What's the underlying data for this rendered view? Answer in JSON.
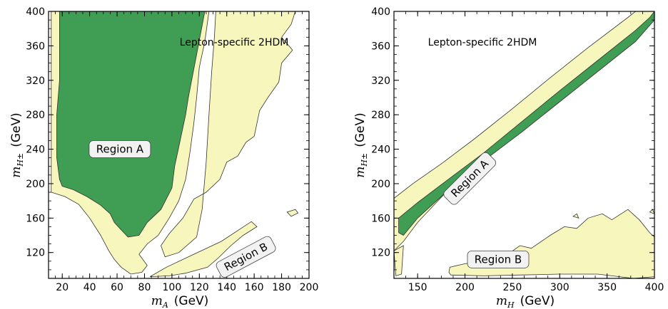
{
  "colors": {
    "light_region": "#f7f7bd",
    "dark_region": "#3f9e54",
    "contour_line": "#333333",
    "label_box": "#f2f2f2"
  },
  "chart_data": [
    {
      "type": "area",
      "annotation": "Lepton-specific 2HDM",
      "xlabel_var": "m",
      "xlabel_sub": "A",
      "xlabel_unit": "(GeV)",
      "ylabel_var": "m",
      "ylabel_sub": "H±",
      "ylabel_unit": "(GeV)",
      "xlim": [
        10,
        200
      ],
      "ylim": [
        90,
        400
      ],
      "xticks": [
        20,
        40,
        60,
        80,
        100,
        120,
        140,
        160,
        180,
        200
      ],
      "yticks": [
        120,
        160,
        200,
        240,
        280,
        320,
        360,
        400
      ],
      "region_labels": [
        {
          "text": "Region A",
          "x": 62,
          "y": 240,
          "angle": 0
        },
        {
          "text": "Region B",
          "x": 154,
          "y": 115,
          "angle": -28
        }
      ],
      "regions": [
        {
          "name": "allowed-2sigma",
          "level": "light",
          "points": [
            [
              12,
              400
            ],
            [
              127,
              400
            ],
            [
              124,
              365
            ],
            [
              120,
              335
            ],
            [
              118,
              300
            ],
            [
              116,
              270
            ],
            [
              113,
              235
            ],
            [
              110,
              205
            ],
            [
              105,
              180
            ],
            [
              98,
              160
            ],
            [
              90,
              140
            ],
            [
              82,
              130
            ],
            [
              76,
              118
            ],
            [
              82,
              105
            ],
            [
              78,
              97
            ],
            [
              70,
              95
            ],
            [
              63,
              103
            ],
            [
              58,
              112
            ],
            [
              54,
              122
            ],
            [
              48,
              140
            ],
            [
              40,
              160
            ],
            [
              32,
              176
            ],
            [
              22,
              185
            ],
            [
              12,
              190
            ]
          ]
        },
        {
          "name": "allowed-2sigma",
          "level": "light",
          "points": [
            [
              132,
              400
            ],
            [
              190,
              400
            ],
            [
              187,
              385
            ],
            [
              180,
              370
            ],
            [
              188,
              355
            ],
            [
              180,
              340
            ],
            [
              178,
              318
            ],
            [
              170,
              300
            ],
            [
              164,
              285
            ],
            [
              162,
              270
            ],
            [
              160,
              255
            ],
            [
              154,
              248
            ],
            [
              148,
              232
            ],
            [
              140,
              225
            ],
            [
              135,
              205
            ],
            [
              125,
              190
            ],
            [
              116,
              182
            ],
            [
              108,
              160
            ],
            [
              98,
              142
            ],
            [
              92,
              128
            ],
            [
              95,
              115
            ],
            [
              105,
              120
            ],
            [
              118,
              138
            ],
            [
              122,
              170
            ],
            [
              125,
              225
            ],
            [
              127,
              280
            ],
            [
              129,
              330
            ],
            [
              131,
              370
            ]
          ]
        },
        {
          "name": "allowed-2sigma",
          "level": "light",
          "points": [
            [
              84,
              92
            ],
            [
              96,
              103
            ],
            [
              116,
              118
            ],
            [
              136,
              133
            ],
            [
              158,
              156
            ],
            [
              162,
              150
            ],
            [
              152,
              140
            ],
            [
              143,
              128
            ],
            [
              134,
              114
            ],
            [
              126,
              103
            ],
            [
              110,
              96
            ],
            [
              98,
              93
            ]
          ]
        },
        {
          "name": "allowed-2sigma",
          "level": "light",
          "points": [
            [
              184,
              167
            ],
            [
              190,
              170
            ],
            [
              192,
              166
            ],
            [
              187,
              162
            ]
          ]
        },
        {
          "name": "allowed-1sigma",
          "level": "dark",
          "points": [
            [
              18,
              400
            ],
            [
              124,
              400
            ],
            [
              118,
              350
            ],
            [
              112,
              300
            ],
            [
              110,
              280
            ],
            [
              106,
              250
            ],
            [
              102,
              220
            ],
            [
              100,
              195
            ],
            [
              92,
              170
            ],
            [
              82,
              155
            ],
            [
              76,
              140
            ],
            [
              68,
              138
            ],
            [
              62,
              148
            ],
            [
              58,
              155
            ],
            [
              55,
              165
            ],
            [
              48,
              175
            ],
            [
              38,
              185
            ],
            [
              28,
              193
            ],
            [
              20,
              197
            ],
            [
              18,
              205
            ],
            [
              16,
              230
            ],
            [
              16,
              280
            ],
            [
              18,
              320
            ],
            [
              18,
              360
            ]
          ]
        }
      ]
    },
    {
      "type": "area",
      "annotation": "Lepton-specific 2HDM",
      "xlabel_var": "m",
      "xlabel_sub": "H",
      "xlabel_unit": "(GeV)",
      "ylabel_var": "m",
      "ylabel_sub": "H±",
      "ylabel_unit": "(GeV)",
      "xlim": [
        125,
        400
      ],
      "ylim": [
        90,
        400
      ],
      "xticks": [
        150,
        200,
        250,
        300,
        350,
        400
      ],
      "yticks": [
        120,
        160,
        200,
        240,
        280,
        320,
        360,
        400
      ],
      "region_labels": [
        {
          "text": "Region A",
          "x": 205,
          "y": 206,
          "angle": -45
        },
        {
          "text": "Region B",
          "x": 235,
          "y": 112,
          "angle": 0
        }
      ],
      "regions": [
        {
          "name": "allowed-2sigma",
          "level": "light",
          "points": [
            [
              125,
              183
            ],
            [
              145,
              200
            ],
            [
              175,
              223
            ],
            [
              210,
              252
            ],
            [
              250,
              287
            ],
            [
              290,
              323
            ],
            [
              330,
              358
            ],
            [
              372,
              393
            ],
            [
              380,
              400
            ],
            [
              400,
              400
            ],
            [
              400,
              395
            ],
            [
              380,
              372
            ],
            [
              340,
              336
            ],
            [
              300,
              300
            ],
            [
              260,
              263
            ],
            [
              220,
              230
            ],
            [
              180,
              190
            ],
            [
              150,
              155
            ],
            [
              135,
              133
            ],
            [
              125,
              122
            ]
          ]
        },
        {
          "name": "allowed-2sigma",
          "level": "light",
          "points": [
            [
              125,
              122
            ],
            [
              135,
              128
            ],
            [
              133,
              95
            ],
            [
              127,
              93
            ]
          ]
        },
        {
          "name": "allowed-2sigma",
          "level": "light",
          "points": [
            [
              183,
              97
            ],
            [
              184,
              103
            ],
            [
              200,
              107
            ],
            [
              220,
              110
            ],
            [
              240,
              114
            ],
            [
              258,
              128
            ],
            [
              270,
              125
            ],
            [
              290,
              140
            ],
            [
              305,
              150
            ],
            [
              318,
              148
            ],
            [
              330,
              160
            ],
            [
              345,
              165
            ],
            [
              355,
              158
            ],
            [
              372,
              170
            ],
            [
              384,
              158
            ],
            [
              395,
              143
            ],
            [
              400,
              138
            ],
            [
              400,
              92
            ],
            [
              378,
              90
            ],
            [
              340,
              95
            ],
            [
              300,
              95
            ],
            [
              260,
              94
            ],
            [
              220,
              93
            ],
            [
              185,
              94
            ]
          ]
        },
        {
          "name": "allowed-2sigma",
          "level": "light",
          "points": [
            [
              314,
              162
            ],
            [
              318,
              165
            ],
            [
              320,
              160
            ]
          ]
        },
        {
          "name": "allowed-2sigma",
          "level": "light",
          "points": [
            [
              395,
              167
            ],
            [
              398,
              170
            ],
            [
              400,
              165
            ]
          ]
        },
        {
          "name": "allowed-1sigma",
          "level": "dark",
          "points": [
            [
              130,
              160
            ],
            [
              150,
              178
            ],
            [
              180,
              203
            ],
            [
              220,
              236
            ],
            [
              260,
              272
            ],
            [
              300,
              308
            ],
            [
              340,
              343
            ],
            [
              380,
              378
            ],
            [
              395,
              393
            ],
            [
              400,
              400
            ],
            [
              400,
              390
            ],
            [
              380,
              365
            ],
            [
              340,
              330
            ],
            [
              300,
              295
            ],
            [
              260,
              260
            ],
            [
              230,
              235
            ],
            [
              200,
              210
            ],
            [
              170,
              180
            ],
            [
              150,
              160
            ],
            [
              135,
              140
            ],
            [
              130,
              143
            ]
          ]
        }
      ]
    }
  ]
}
